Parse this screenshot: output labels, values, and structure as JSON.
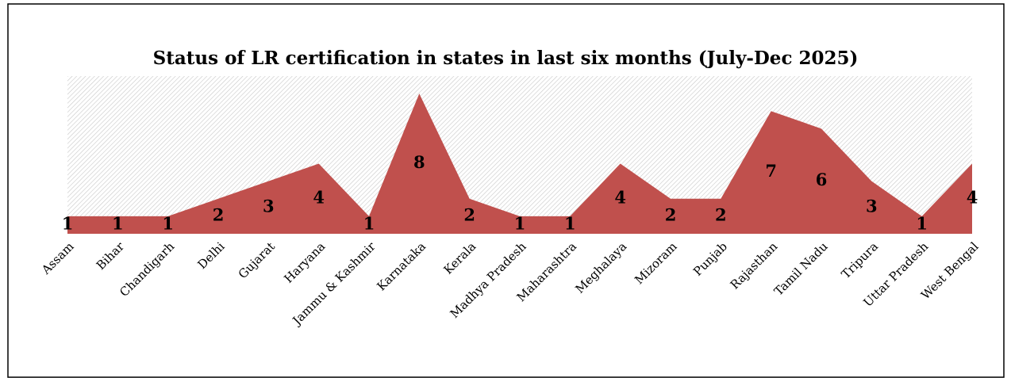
{
  "chart_data": {
    "type": "area",
    "title": "Status of LR certification in states in last six months (July-Dec 2025)",
    "categories": [
      "Assam",
      "Bihar",
      "Chandigarh",
      "Delhi",
      "Gujarat",
      "Haryana",
      "Jammu & Kashmir",
      "Karnataka",
      "Kerala",
      "Madhya Pradesh",
      "Maharashtra",
      "Meghalaya",
      "Mizoram",
      "Punjab",
      "Rajasthan",
      "Tamil Nadu",
      "Tripura",
      "Uttar Pradesh",
      "West Bengal"
    ],
    "values": [
      1,
      1,
      1,
      2,
      3,
      4,
      1,
      8,
      2,
      1,
      1,
      4,
      2,
      2,
      7,
      6,
      3,
      1,
      4
    ],
    "color": "#c0504d",
    "ylim": [
      0,
      9
    ]
  }
}
